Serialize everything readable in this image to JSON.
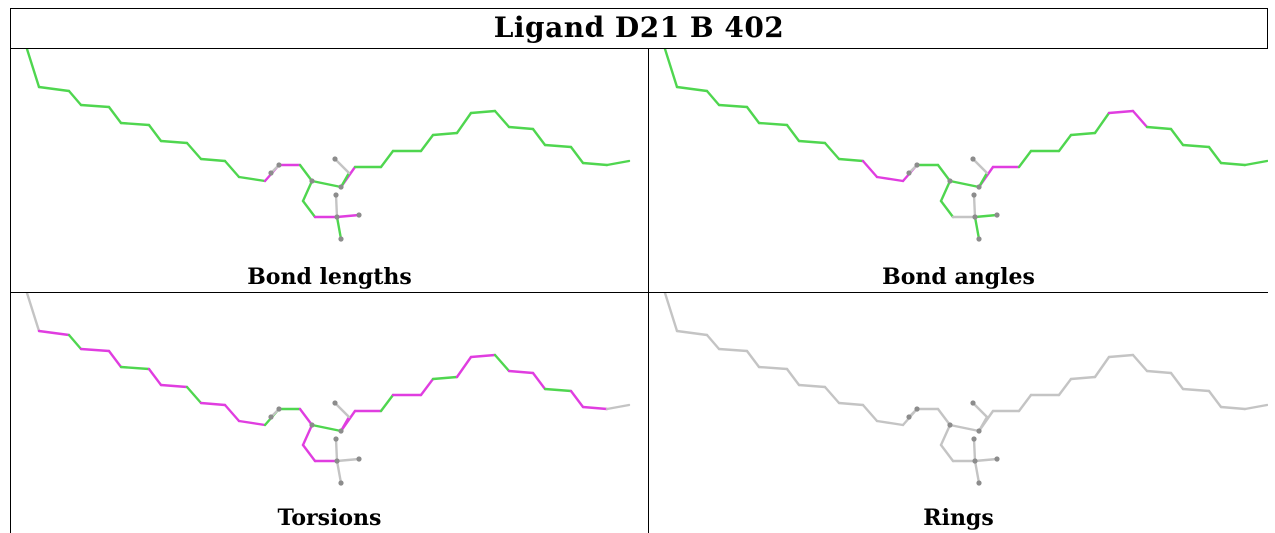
{
  "header": {
    "title": "Ligand D21 B 402"
  },
  "panels": [
    {
      "caption": "Bond lengths",
      "scheme": "lengths"
    },
    {
      "caption": "Bond angles",
      "scheme": "angles"
    },
    {
      "caption": "Torsions",
      "scheme": "torsions"
    },
    {
      "caption": "Rings",
      "scheme": "rings"
    }
  ],
  "colors": {
    "good": "#4fd64f",
    "outlier": "#e03de0",
    "neutral": "#c4c4c4",
    "atom": "#8c8c8c"
  }
}
